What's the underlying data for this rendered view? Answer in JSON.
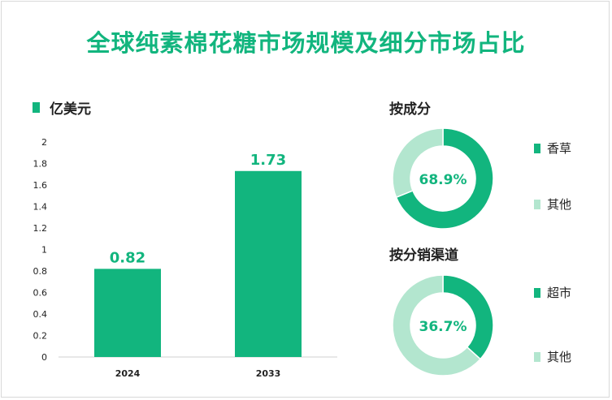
{
  "title": "全球纯素棉花糖市场规模及细分市场占比",
  "colors": {
    "primary": "#12b57e",
    "light": "#b3e6cf",
    "text": "#222222"
  },
  "chart_data": [
    {
      "type": "bar",
      "unit_label": "亿美元",
      "categories": [
        "2024",
        "2033"
      ],
      "values": [
        0.82,
        1.73
      ],
      "value_labels": [
        "0.82",
        "1.73"
      ],
      "ylim": [
        0,
        2
      ],
      "yticks": [
        "0",
        "0.2",
        "0.4",
        "0.6",
        "0.8",
        "1",
        "1.2",
        "1.4",
        "1.6",
        "1.8",
        "2"
      ],
      "grid": false
    },
    {
      "type": "pie",
      "title": "按成分",
      "center_label": "68.9%",
      "slices": [
        {
          "label": "香草",
          "value": 68.9
        },
        {
          "label": "其他",
          "value": 31.1
        }
      ]
    },
    {
      "type": "pie",
      "title": "按分销渠道",
      "center_label": "36.7%",
      "slices": [
        {
          "label": "超市",
          "value": 36.7
        },
        {
          "label": "其他",
          "value": 63.3
        }
      ]
    }
  ]
}
